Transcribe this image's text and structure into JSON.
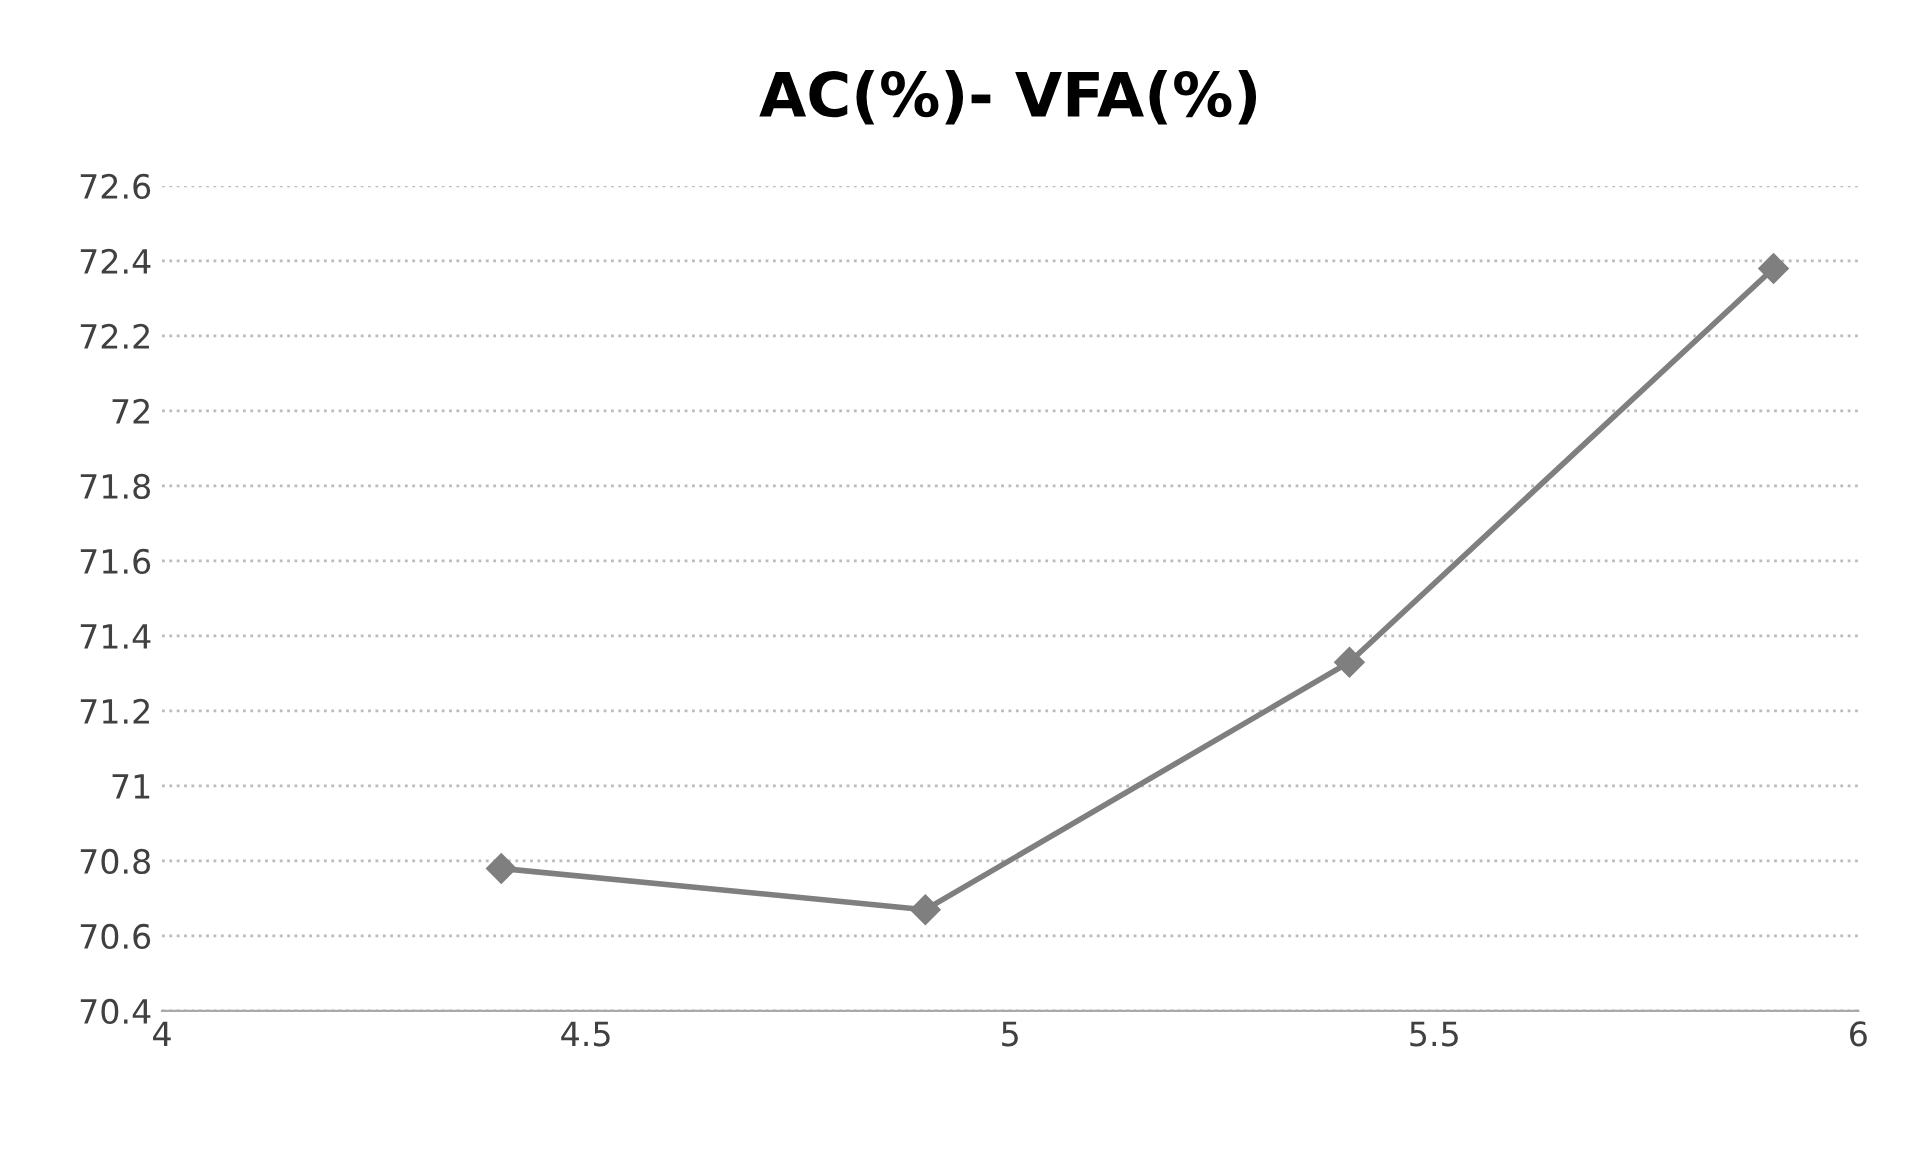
{
  "chart_data": {
    "type": "line",
    "title": "AC(%)- VFA(%)",
    "x": [
      4.4,
      4.9,
      5.4,
      5.9
    ],
    "series": [
      {
        "color": "#7f7f7f",
        "values": [
          70.78,
          70.67,
          71.33,
          72.38
        ]
      }
    ],
    "xlim": [
      4,
      6
    ],
    "xticks": [
      4,
      4.5,
      5,
      5.5,
      6
    ],
    "ylim": [
      70.4,
      72.6
    ],
    "yticks": [
      70.4,
      70.6,
      70.8,
      71,
      71.2,
      71.4,
      71.6,
      71.8,
      72,
      72.2,
      72.4,
      72.6
    ],
    "grid": "y",
    "marker": "diamond",
    "line_style": "solid"
  }
}
